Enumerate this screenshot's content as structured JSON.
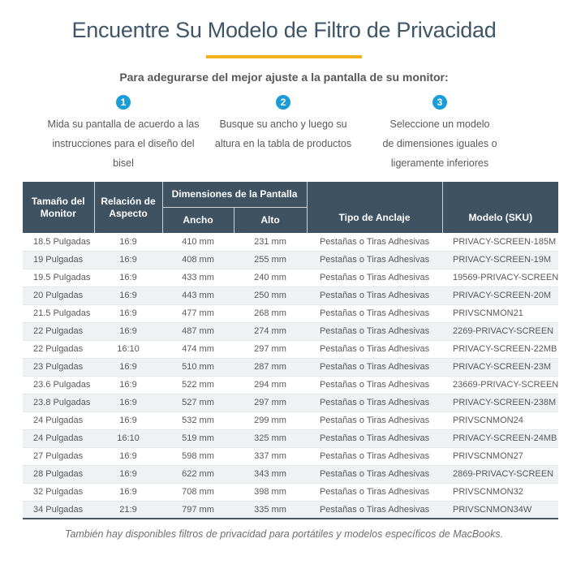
{
  "page": {
    "title": "Encuentre Su Modelo de Filtro de Privacidad",
    "subtitle": "Para adegurarse del mejor ajuste a la pantalla de su monitor:",
    "footer": "También hay disponibles filtros de privacidad para portátiles y modelos específicos de MacBooks."
  },
  "colors": {
    "accent_yellow": "#f2b21d",
    "step_blue": "#1a9cd8",
    "table_header_bg": "#3e5262",
    "alt_row_bg": "#eef2f4",
    "title_text": "#3e5668",
    "body_text": "#58595b"
  },
  "steps": [
    {
      "number": "1",
      "text": "Mida su pantalla de acuerdo a las\ninstrucciones para el diseño del\nbisel"
    },
    {
      "number": "2",
      "text": "Busque su ancho y luego su\naltura en la tabla de productos"
    },
    {
      "number": "3",
      "text": "Seleccione un modelo\nde dimensiones iguales o\nligeramente inferiores"
    }
  ],
  "table": {
    "headers": {
      "monitor_size": "Tamaño del Monitor",
      "aspect_ratio": "Relación de Aspecto",
      "screen_dimensions": "Dimensiones de la Pantalla",
      "width": "Ancho",
      "height": "Alto",
      "anchor_type": "Tipo de Anclaje",
      "model_sku": "Modelo (SKU)"
    },
    "rows": [
      [
        "18.5 Pulgadas",
        "16:9",
        "410 mm",
        "231 mm",
        "Pestañas o Tiras Adhesivas",
        "PRIVACY-SCREEN-185M"
      ],
      [
        "19 Pulgadas",
        "16:9",
        "408 mm",
        "255 mm",
        "Pestañas o Tiras Adhesivas",
        "PRIVACY-SCREEN-19M"
      ],
      [
        "19.5 Pulgadas",
        "16:9",
        "433 mm",
        "240 mm",
        "Pestañas o Tiras Adhesivas",
        "19569-PRIVACY-SCREEN"
      ],
      [
        "20 Pulgadas",
        "16:9",
        "443 mm",
        "250 mm",
        "Pestañas o Tiras Adhesivas",
        "PRIVACY-SCREEN-20M"
      ],
      [
        "21.5 Pulgadas",
        "16:9",
        "477 mm",
        "268 mm",
        "Pestañas o Tiras Adhesivas",
        "PRIVSCNMON21"
      ],
      [
        "22 Pulgadas",
        "16:9",
        "487 mm",
        "274 mm",
        "Pestañas o Tiras Adhesivas",
        "2269-PRIVACY-SCREEN"
      ],
      [
        "22 Pulgadas",
        "16:10",
        "474 mm",
        "297 mm",
        "Pestañas o Tiras Adhesivas",
        "PRIVACY-SCREEN-22MB"
      ],
      [
        "23 Pulgadas",
        "16:9",
        "510 mm",
        "287 mm",
        "Pestañas o Tiras Adhesivas",
        "PRIVACY-SCREEN-23M"
      ],
      [
        "23.6 Pulgadas",
        "16:9",
        "522 mm",
        "294 mm",
        "Pestañas o Tiras Adhesivas",
        "23669-PRIVACY-SCREEN"
      ],
      [
        "23.8 Pulgadas",
        "16:9",
        "527 mm",
        "297 mm",
        "Pestañas o Tiras Adhesivas",
        "PRIVACY-SCREEN-238M"
      ],
      [
        "24 Pulgadas",
        "16:9",
        "532 mm",
        "299 mm",
        "Pestañas o Tiras Adhesivas",
        "PRIVSCNMON24"
      ],
      [
        "24 Pulgadas",
        "16:10",
        "519 mm",
        "325 mm",
        "Pestañas o Tiras Adhesivas",
        "PRIVACY-SCREEN-24MB"
      ],
      [
        "27 Pulgadas",
        "16:9",
        "598 mm",
        "337 mm",
        "Pestañas o Tiras Adhesivas",
        "PRIVSCNMON27"
      ],
      [
        "28 Pulgadas",
        "16:9",
        "622 mm",
        "343 mm",
        "Pestañas o Tiras Adhesivas",
        "2869-PRIVACY-SCREEN"
      ],
      [
        "32 Pulgadas",
        "16:9",
        "708 mm",
        "398 mm",
        "Pestañas o Tiras Adhesivas",
        "PRIVSCNMON32"
      ],
      [
        "34 Pulgadas",
        "21:9",
        "797 mm",
        "335 mm",
        "Pestañas o Tiras Adhesivas",
        "PRIVSCNMON34W"
      ]
    ]
  }
}
